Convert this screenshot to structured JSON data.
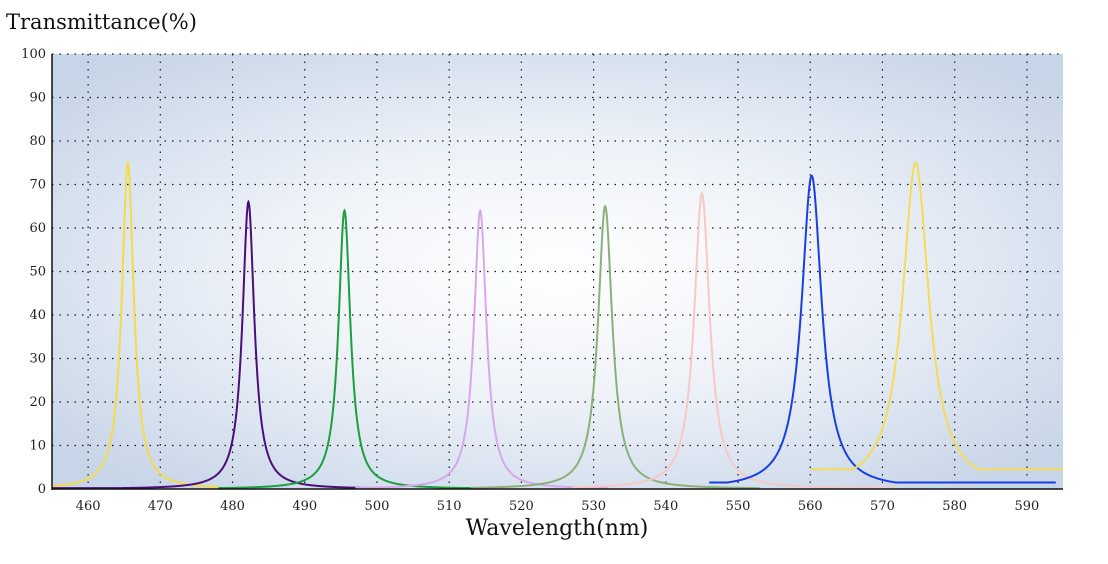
{
  "chart_data": {
    "type": "line",
    "title": "",
    "ylabel": "Transmittance(%)",
    "xlabel": "Wavelength(nm)",
    "xlim": [
      455,
      595
    ],
    "ylim": [
      0,
      100
    ],
    "xticks": [
      460,
      470,
      480,
      490,
      500,
      510,
      520,
      530,
      540,
      550,
      560,
      570,
      580,
      590
    ],
    "yticks": [
      0,
      10,
      20,
      30,
      40,
      50,
      60,
      70,
      80,
      90,
      100
    ],
    "grid": true,
    "legend": "none",
    "series": [
      {
        "color": "#f2dc4a",
        "peak_nm": 465.5,
        "peak_pct": 75,
        "fwhm_nm": 2.0,
        "baseline_pct": 0.3,
        "range": [
          455,
          478
        ]
      },
      {
        "color": "#4a0f7a",
        "peak_nm": 482.2,
        "peak_pct": 66,
        "fwhm_nm": 2.0,
        "baseline_pct": 0.2,
        "range": [
          455,
          500
        ]
      },
      {
        "color": "#1aa03c",
        "peak_nm": 495.5,
        "peak_pct": 64,
        "fwhm_nm": 2.0,
        "baseline_pct": 0.2,
        "range": [
          478,
          513
        ]
      },
      {
        "color": "#d7a8ea",
        "peak_nm": 514.3,
        "peak_pct": 64,
        "fwhm_nm": 2.1,
        "baseline_pct": 0.2,
        "range": [
          497,
          532
        ]
      },
      {
        "color": "#8cb07a",
        "peak_nm": 531.6,
        "peak_pct": 65,
        "fwhm_nm": 2.4,
        "baseline_pct": 0.2,
        "range": [
          513,
          553
        ]
      },
      {
        "color": "#f7c8c8",
        "peak_nm": 545.0,
        "peak_pct": 68,
        "fwhm_nm": 2.6,
        "baseline_pct": 0.3,
        "range": [
          527,
          572
        ]
      },
      {
        "color": "#1a3fe0",
        "peak_nm": 560.2,
        "peak_pct": 72,
        "fwhm_nm": 3.4,
        "baseline_pct": 1.5,
        "range": [
          546,
          594
        ]
      },
      {
        "color": "#f4dc58",
        "peak_nm": 574.6,
        "peak_pct": 75,
        "fwhm_nm": 4.4,
        "baseline_pct": 4.5,
        "range": [
          560,
          595
        ]
      }
    ]
  }
}
